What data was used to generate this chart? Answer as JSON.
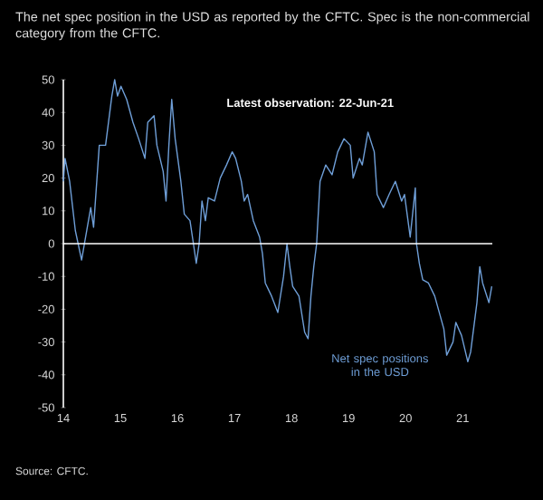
{
  "chart_data": {
    "type": "line",
    "title": "The net spec position in the USD as reported by the CFTC. Spec is the non-commercial category from the CFTC.",
    "annotations": [
      "Latest observation:   22-Jun-21",
      "Source: CFTC."
    ],
    "xlim": [
      2014,
      2021.52
    ],
    "ylim": [
      -50,
      50
    ],
    "xticks": [
      {
        "value": 2014,
        "label": "14"
      },
      {
        "value": 2015,
        "label": "15"
      },
      {
        "value": 2016,
        "label": "16"
      },
      {
        "value": 2017,
        "label": "17"
      },
      {
        "value": 2018,
        "label": "18"
      },
      {
        "value": 2019,
        "label": "19"
      },
      {
        "value": 2020,
        "label": "20"
      },
      {
        "value": 2021,
        "label": "21"
      }
    ],
    "yticks": [
      -50,
      -40,
      -30,
      -20,
      -10,
      0,
      10,
      20,
      30,
      40,
      50
    ],
    "grid": false,
    "legend": false,
    "ref_lines": [
      {
        "axis": "y",
        "value": 0,
        "color": "#ffffff"
      }
    ],
    "series": [
      {
        "name": "Net spec positions in the USD",
        "color": "#6f9fd8",
        "x": [
          2014.0,
          2014.03,
          2014.11,
          2014.21,
          2014.32,
          2014.37,
          2014.48,
          2014.53,
          2014.63,
          2014.74,
          2014.85,
          2014.9,
          2014.95,
          2015.01,
          2015.11,
          2015.22,
          2015.32,
          2015.43,
          2015.48,
          2015.59,
          2015.64,
          2015.75,
          2015.8,
          2015.85,
          2015.9,
          2015.96,
          2016.06,
          2016.12,
          2016.22,
          2016.28,
          2016.33,
          2016.38,
          2016.43,
          2016.49,
          2016.54,
          2016.65,
          2016.75,
          2016.86,
          2016.96,
          2017.02,
          2017.12,
          2017.17,
          2017.23,
          2017.33,
          2017.44,
          2017.49,
          2017.54,
          2017.65,
          2017.76,
          2017.86,
          2017.92,
          2017.97,
          2018.02,
          2018.13,
          2018.23,
          2018.29,
          2018.34,
          2018.39,
          2018.44,
          2018.5,
          2018.6,
          2018.71,
          2018.81,
          2018.92,
          2019.03,
          2019.08,
          2019.19,
          2019.24,
          2019.34,
          2019.45,
          2019.5,
          2019.61,
          2019.71,
          2019.82,
          2019.93,
          2019.98,
          2020.08,
          2020.17,
          2020.19,
          2020.24,
          2020.3,
          2020.4,
          2020.51,
          2020.67,
          2020.72,
          2020.83,
          2020.88,
          2020.98,
          2021.09,
          2021.14,
          2021.25,
          2021.3,
          2021.35,
          2021.46,
          2021.51
        ],
        "values": [
          19,
          26,
          19,
          4,
          -5,
          0,
          11,
          5,
          30,
          30,
          45,
          50,
          45,
          48,
          44,
          37,
          32,
          26,
          37,
          39,
          30,
          22,
          13,
          30,
          44,
          32,
          19,
          9,
          7,
          0,
          -6,
          0,
          13,
          7,
          14,
          13,
          20,
          24,
          28,
          26,
          19,
          13,
          15,
          7,
          2,
          -3,
          -12,
          -16,
          -21,
          -10,
          0,
          -7,
          -13,
          -16,
          -27,
          -29,
          -16,
          -7,
          0,
          19,
          24,
          21,
          28,
          32,
          30,
          20,
          26,
          24,
          34,
          28,
          15,
          11,
          15,
          19,
          13,
          15,
          2,
          17,
          0,
          -6,
          -11,
          -12,
          -16,
          -26,
          -34,
          -30,
          -24,
          -28,
          -36,
          -33,
          -18,
          -7,
          -12,
          -18,
          -13
        ]
      }
    ]
  }
}
